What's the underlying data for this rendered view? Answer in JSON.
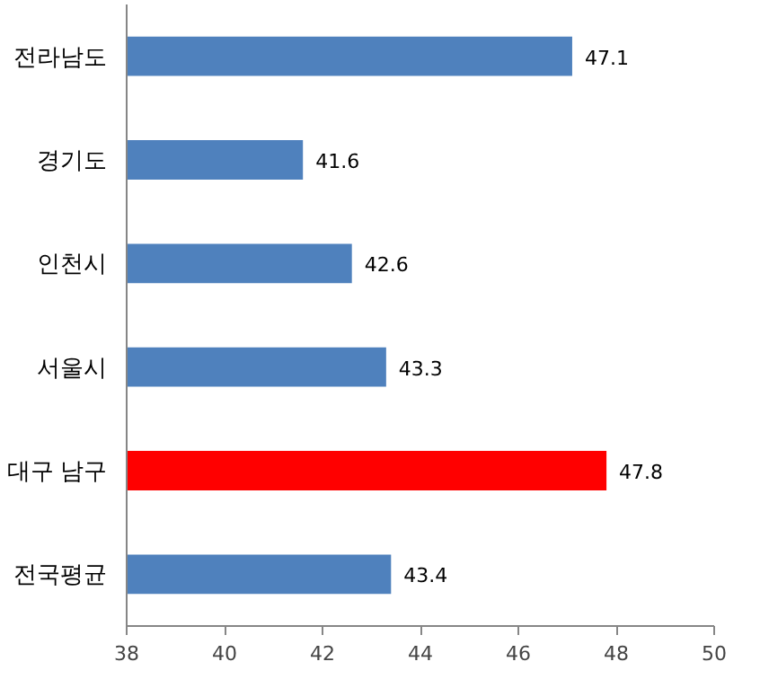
{
  "chart_data": {
    "type": "bar",
    "orientation": "horizontal",
    "categories": [
      "전라남도",
      "경기도",
      "인천시",
      "서울시",
      "대구 남구",
      "전국평균"
    ],
    "values": [
      47.1,
      41.6,
      42.6,
      43.3,
      47.8,
      43.4
    ],
    "colors": [
      "#4f81bd",
      "#4f81bd",
      "#4f81bd",
      "#4f81bd",
      "#ff0000",
      "#4f81bd"
    ],
    "xlim": [
      38,
      50
    ],
    "xticks": [
      38,
      40,
      42,
      44,
      46,
      48,
      50
    ],
    "data_labels": true,
    "grid": false
  }
}
